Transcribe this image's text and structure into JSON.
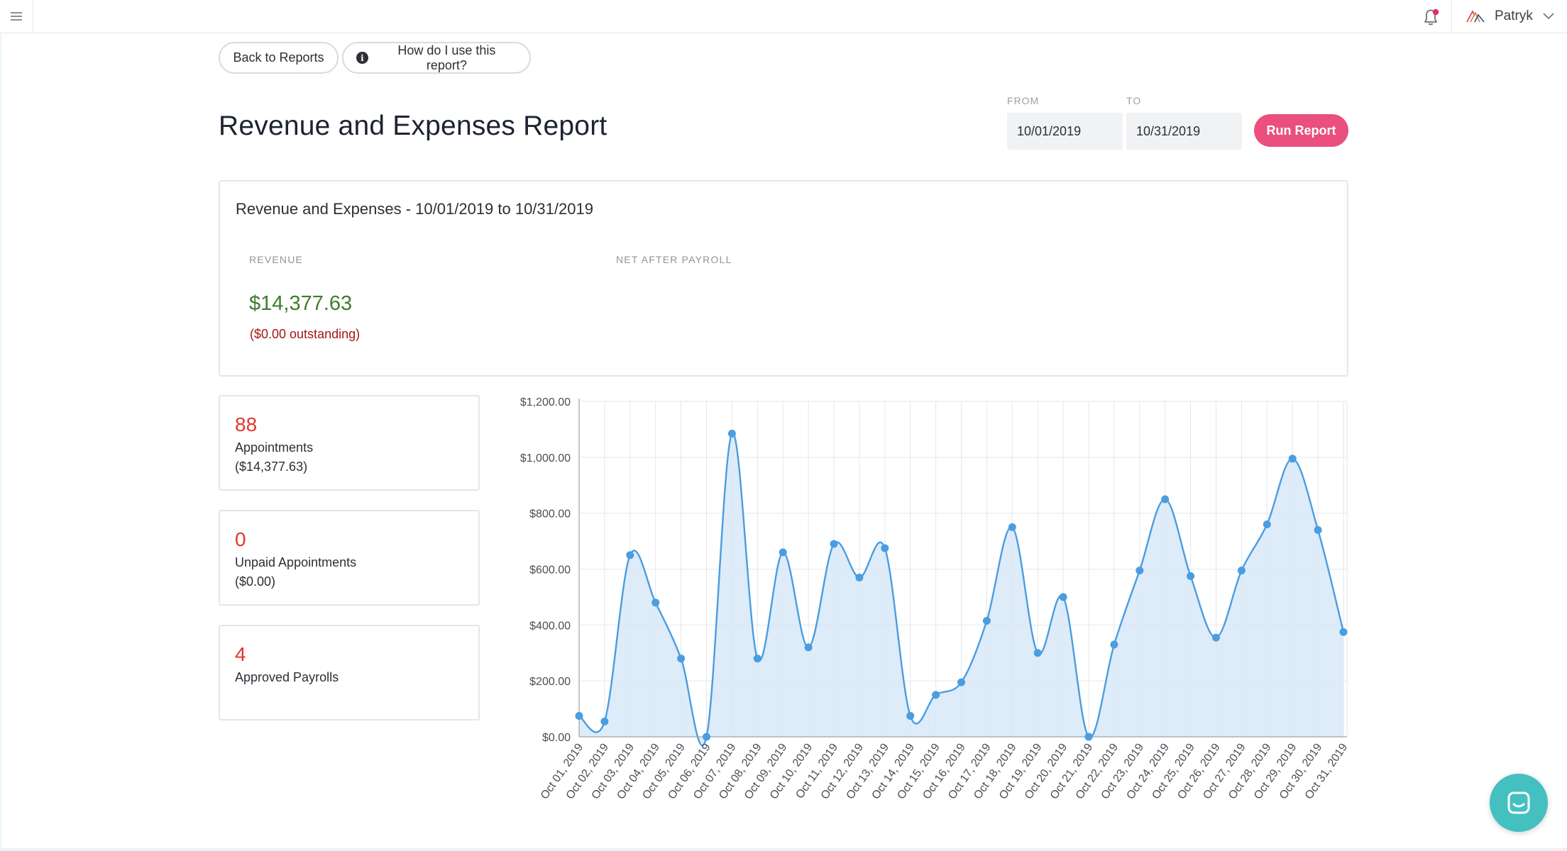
{
  "header": {
    "user_name": "Patryk",
    "icons": [
      "hamburger-menu-icon",
      "bell-icon",
      "brand-logo-icon",
      "chevron-down-icon"
    ],
    "notification_dot_color": "#e0306a"
  },
  "actions": {
    "back_label": "Back to Reports",
    "help_label": "How do I use this report?"
  },
  "page_title": "Revenue and Expenses Report",
  "filters": {
    "from_label": "FROM",
    "from_value": "10/01/2019",
    "to_label": "TO",
    "to_value": "10/31/2019",
    "run_label": "Run Report"
  },
  "summary": {
    "title": "Revenue and Expenses - 10/01/2019 to 10/31/2019",
    "revenue_label": "REVENUE",
    "revenue_value": "$14,377.63",
    "outstanding": "($0.00 outstanding)",
    "net_label": "NET AFTER PAYROLL",
    "revenue_color": "#3f7d2c",
    "outstanding_color": "#a4161a"
  },
  "stats": [
    {
      "number": "88",
      "label": "Appointments",
      "sub": "($14,377.63)"
    },
    {
      "number": "0",
      "label": "Unpaid Appointments",
      "sub": "($0.00)"
    },
    {
      "number": "4",
      "label": "Approved Payrolls",
      "sub": ""
    }
  ],
  "colors": {
    "accent": "#ea4f7e",
    "series_line": "#4a9de0",
    "series_fill": "#d8e8f8",
    "stat_number": "#e0372f",
    "chat": "#44c0c1"
  },
  "chart_data": {
    "type": "area",
    "title": "",
    "xlabel": "",
    "ylabel": "",
    "x": [
      "Oct 01, 2019",
      "Oct 02, 2019",
      "Oct 03, 2019",
      "Oct 04, 2019",
      "Oct 05, 2019",
      "Oct 06, 2019",
      "Oct 07, 2019",
      "Oct 08, 2019",
      "Oct 09, 2019",
      "Oct 10, 2019",
      "Oct 11, 2019",
      "Oct 12, 2019",
      "Oct 13, 2019",
      "Oct 14, 2019",
      "Oct 15, 2019",
      "Oct 16, 2019",
      "Oct 17, 2019",
      "Oct 18, 2019",
      "Oct 19, 2019",
      "Oct 20, 2019",
      "Oct 21, 2019",
      "Oct 22, 2019",
      "Oct 23, 2019",
      "Oct 24, 2019",
      "Oct 25, 2019",
      "Oct 26, 2019",
      "Oct 27, 2019",
      "Oct 28, 2019",
      "Oct 29, 2019",
      "Oct 30, 2019",
      "Oct 31, 2019"
    ],
    "values": [
      75,
      55,
      650,
      480,
      280,
      0,
      1085,
      280,
      660,
      320,
      690,
      570,
      675,
      75,
      150,
      195,
      415,
      750,
      300,
      500,
      0,
      330,
      595,
      850,
      575,
      355,
      595,
      760,
      995,
      740,
      375
    ],
    "y_ticks": [
      "$0.00",
      "$200.00",
      "$400.00",
      "$600.00",
      "$800.00",
      "$1,000.00",
      "$1,200.00"
    ],
    "ylim": [
      0,
      1200
    ],
    "grid": true,
    "legend": "none"
  }
}
